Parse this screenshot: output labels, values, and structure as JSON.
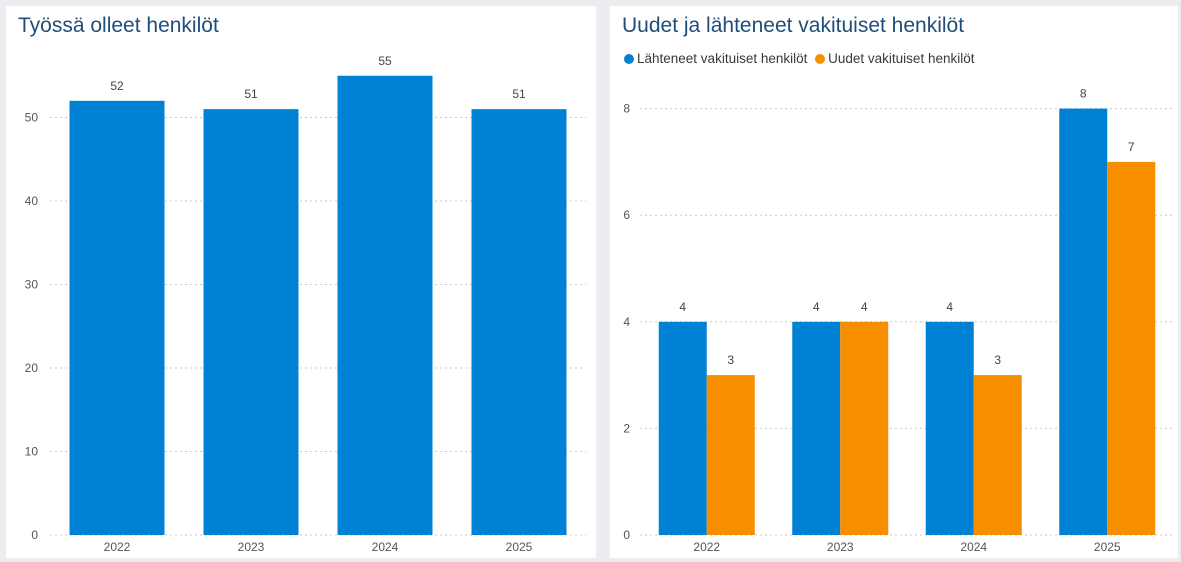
{
  "colors": {
    "blue": "#0081d4",
    "orange": "#f68e00",
    "title": "#1f4e79"
  },
  "chart_data": [
    {
      "type": "bar",
      "title": "Työssä olleet henkilöt",
      "categories": [
        "2022",
        "2023",
        "2024",
        "2025"
      ],
      "values": [
        52,
        51,
        55,
        51
      ],
      "ylim": [
        0,
        55
      ],
      "yticks": [
        0,
        10,
        20,
        30,
        40,
        50
      ],
      "grid": true,
      "data_labels": true
    },
    {
      "type": "bar",
      "title": "Uudet ja lähteneet vakituiset henkilöt",
      "categories": [
        "2022",
        "2023",
        "2024",
        "2025"
      ],
      "series": [
        {
          "name": "Lähteneet vakituiset henkilöt",
          "values": [
            4,
            4,
            4,
            8
          ],
          "color": "#0081d4"
        },
        {
          "name": "Uudet vakituiset henkilöt",
          "values": [
            3,
            4,
            3,
            7
          ],
          "color": "#f68e00"
        }
      ],
      "ylim": [
        0,
        8
      ],
      "yticks": [
        0,
        2,
        4,
        6,
        8
      ],
      "legend": "top-left",
      "grid": true,
      "data_labels": true
    }
  ]
}
